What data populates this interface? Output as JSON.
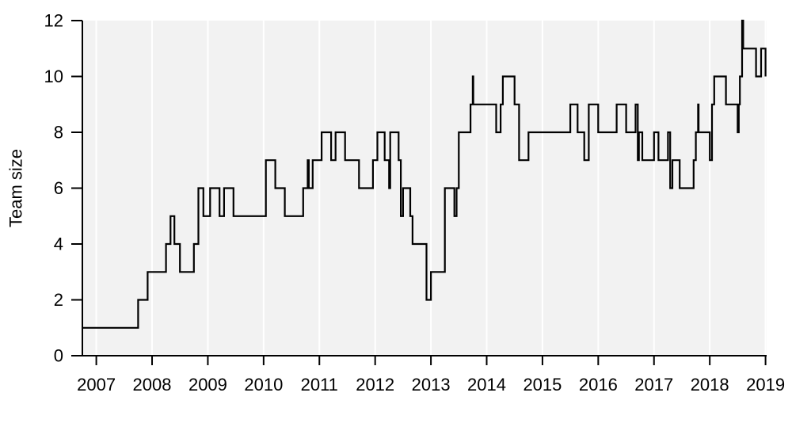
{
  "chart_data": {
    "type": "line",
    "title": "",
    "xlabel": "",
    "ylabel": "Team size",
    "xlim": [
      2006.75,
      2019.02
    ],
    "ylim": [
      0,
      12
    ],
    "x_ticks": [
      2007,
      2008,
      2009,
      2010,
      2011,
      2012,
      2013,
      2014,
      2015,
      2016,
      2017,
      2018,
      2019
    ],
    "x_tick_labels": [
      "2007",
      "2008",
      "2009",
      "2010",
      "2011",
      "2012",
      "2013",
      "2014",
      "2015",
      "2016",
      "2017",
      "2018",
      "2019"
    ],
    "y_ticks": [
      0,
      2,
      4,
      6,
      8,
      10,
      12
    ],
    "y_tick_labels": [
      "0",
      "2",
      "4",
      "6",
      "8",
      "10",
      "12"
    ],
    "grid": {
      "x": true,
      "y": false
    },
    "colors": {
      "plot_background": "#f2f2f2",
      "gridline": "#ffffff",
      "line": "#000000"
    },
    "series": [
      {
        "step": true,
        "points": [
          [
            2006.75,
            1
          ],
          [
            2007.75,
            1
          ],
          [
            2007.75,
            2
          ],
          [
            2007.92,
            2
          ],
          [
            2007.92,
            3
          ],
          [
            2008.25,
            3
          ],
          [
            2008.25,
            4
          ],
          [
            2008.33,
            4
          ],
          [
            2008.33,
            5
          ],
          [
            2008.4,
            5
          ],
          [
            2008.4,
            4
          ],
          [
            2008.5,
            4
          ],
          [
            2008.5,
            3
          ],
          [
            2008.75,
            3
          ],
          [
            2008.75,
            4
          ],
          [
            2008.83,
            4
          ],
          [
            2008.83,
            6
          ],
          [
            2008.92,
            6
          ],
          [
            2008.92,
            5
          ],
          [
            2009.04,
            5
          ],
          [
            2009.04,
            6
          ],
          [
            2009.21,
            6
          ],
          [
            2009.21,
            5
          ],
          [
            2009.29,
            5
          ],
          [
            2009.29,
            6
          ],
          [
            2009.46,
            6
          ],
          [
            2009.46,
            5
          ],
          [
            2010.04,
            5
          ],
          [
            2010.04,
            7
          ],
          [
            2010.21,
            7
          ],
          [
            2010.21,
            6
          ],
          [
            2010.38,
            6
          ],
          [
            2010.38,
            5
          ],
          [
            2010.71,
            5
          ],
          [
            2010.71,
            6
          ],
          [
            2010.79,
            6
          ],
          [
            2010.79,
            7
          ],
          [
            2010.81,
            7
          ],
          [
            2010.81,
            6
          ],
          [
            2010.88,
            6
          ],
          [
            2010.88,
            7
          ],
          [
            2011.04,
            7
          ],
          [
            2011.04,
            8
          ],
          [
            2011.21,
            8
          ],
          [
            2011.21,
            7
          ],
          [
            2011.29,
            7
          ],
          [
            2011.29,
            8
          ],
          [
            2011.46,
            8
          ],
          [
            2011.46,
            7
          ],
          [
            2011.71,
            7
          ],
          [
            2011.71,
            6
          ],
          [
            2011.96,
            6
          ],
          [
            2011.96,
            7
          ],
          [
            2012.04,
            7
          ],
          [
            2012.04,
            8
          ],
          [
            2012.17,
            8
          ],
          [
            2012.17,
            7
          ],
          [
            2012.25,
            7
          ],
          [
            2012.25,
            6
          ],
          [
            2012.27,
            6
          ],
          [
            2012.27,
            8
          ],
          [
            2012.42,
            8
          ],
          [
            2012.42,
            7
          ],
          [
            2012.46,
            7
          ],
          [
            2012.46,
            5
          ],
          [
            2012.5,
            5
          ],
          [
            2012.5,
            6
          ],
          [
            2012.63,
            6
          ],
          [
            2012.63,
            5
          ],
          [
            2012.67,
            5
          ],
          [
            2012.67,
            4
          ],
          [
            2012.92,
            4
          ],
          [
            2012.92,
            2
          ],
          [
            2013.0,
            2
          ],
          [
            2013.0,
            3
          ],
          [
            2013.25,
            3
          ],
          [
            2013.25,
            6
          ],
          [
            2013.42,
            6
          ],
          [
            2013.42,
            5
          ],
          [
            2013.46,
            5
          ],
          [
            2013.46,
            6
          ],
          [
            2013.5,
            6
          ],
          [
            2013.5,
            8
          ],
          [
            2013.71,
            8
          ],
          [
            2013.71,
            9
          ],
          [
            2013.75,
            9
          ],
          [
            2013.75,
            10
          ],
          [
            2013.76,
            10
          ],
          [
            2013.76,
            9
          ],
          [
            2014.17,
            9
          ],
          [
            2014.17,
            8
          ],
          [
            2014.25,
            8
          ],
          [
            2014.25,
            9
          ],
          [
            2014.29,
            9
          ],
          [
            2014.29,
            10
          ],
          [
            2014.5,
            10
          ],
          [
            2014.5,
            9
          ],
          [
            2014.58,
            9
          ],
          [
            2014.58,
            7
          ],
          [
            2014.75,
            7
          ],
          [
            2014.75,
            8
          ],
          [
            2015.5,
            8
          ],
          [
            2015.5,
            9
          ],
          [
            2015.63,
            9
          ],
          [
            2015.63,
            8
          ],
          [
            2015.75,
            8
          ],
          [
            2015.75,
            7
          ],
          [
            2015.83,
            7
          ],
          [
            2015.83,
            9
          ],
          [
            2016.0,
            9
          ],
          [
            2016.0,
            8
          ],
          [
            2016.33,
            8
          ],
          [
            2016.33,
            9
          ],
          [
            2016.5,
            9
          ],
          [
            2016.5,
            8
          ],
          [
            2016.67,
            8
          ],
          [
            2016.67,
            9
          ],
          [
            2016.71,
            9
          ],
          [
            2016.71,
            7
          ],
          [
            2016.73,
            7
          ],
          [
            2016.73,
            8
          ],
          [
            2016.79,
            8
          ],
          [
            2016.79,
            7
          ],
          [
            2017.0,
            7
          ],
          [
            2017.0,
            8
          ],
          [
            2017.08,
            8
          ],
          [
            2017.08,
            7
          ],
          [
            2017.25,
            7
          ],
          [
            2017.25,
            8
          ],
          [
            2017.29,
            8
          ],
          [
            2017.29,
            6
          ],
          [
            2017.33,
            6
          ],
          [
            2017.33,
            7
          ],
          [
            2017.46,
            7
          ],
          [
            2017.46,
            6
          ],
          [
            2017.71,
            6
          ],
          [
            2017.71,
            7
          ],
          [
            2017.75,
            7
          ],
          [
            2017.75,
            8
          ],
          [
            2017.79,
            8
          ],
          [
            2017.79,
            9
          ],
          [
            2017.8,
            9
          ],
          [
            2017.8,
            8
          ],
          [
            2018.0,
            8
          ],
          [
            2018.0,
            7
          ],
          [
            2018.04,
            7
          ],
          [
            2018.04,
            9
          ],
          [
            2018.08,
            9
          ],
          [
            2018.08,
            10
          ],
          [
            2018.29,
            10
          ],
          [
            2018.29,
            9
          ],
          [
            2018.5,
            9
          ],
          [
            2018.5,
            8
          ],
          [
            2018.52,
            8
          ],
          [
            2018.52,
            9
          ],
          [
            2018.54,
            9
          ],
          [
            2018.54,
            10
          ],
          [
            2018.58,
            10
          ],
          [
            2018.58,
            12
          ],
          [
            2018.6,
            12
          ],
          [
            2018.6,
            11
          ],
          [
            2018.83,
            11
          ],
          [
            2018.83,
            10
          ],
          [
            2018.92,
            10
          ],
          [
            2018.92,
            11
          ],
          [
            2019.0,
            11
          ],
          [
            2019.0,
            10
          ]
        ]
      }
    ]
  }
}
